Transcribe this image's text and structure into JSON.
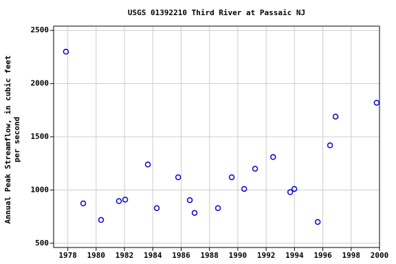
{
  "chart_data": {
    "type": "scatter",
    "title": "USGS 01392210 Third River at Passaic NJ",
    "ylabel": [
      "Annual Peak Streamflow, in cubic feet",
      "per second"
    ],
    "series": [
      {
        "color": "#0000cc",
        "x": [
          1977.87,
          1979.09,
          1980.35,
          1981.61,
          1982.05,
          1983.65,
          1984.28,
          1985.79,
          1986.61,
          1986.95,
          1988.6,
          1989.57,
          1990.45,
          1991.22,
          1992.49,
          1993.7,
          1993.99,
          1995.64,
          1996.51,
          1996.9,
          1999.8
        ],
        "values": [
          2300,
          874,
          719,
          896,
          910,
          1240,
          830,
          1120,
          905,
          785,
          830,
          1120,
          1010,
          1200,
          1310,
          980,
          1010,
          700,
          1420,
          1690,
          1820
        ]
      }
    ],
    "xlim": [
      1977,
      2000
    ],
    "xticks": [
      1978,
      1980,
      1982,
      1984,
      1986,
      1988,
      1990,
      1992,
      1994,
      1996,
      1998,
      2000
    ],
    "ylim": [
      460,
      2540
    ],
    "yticks": [
      500,
      1000,
      1500,
      2000,
      2500
    ],
    "grid": true
  }
}
